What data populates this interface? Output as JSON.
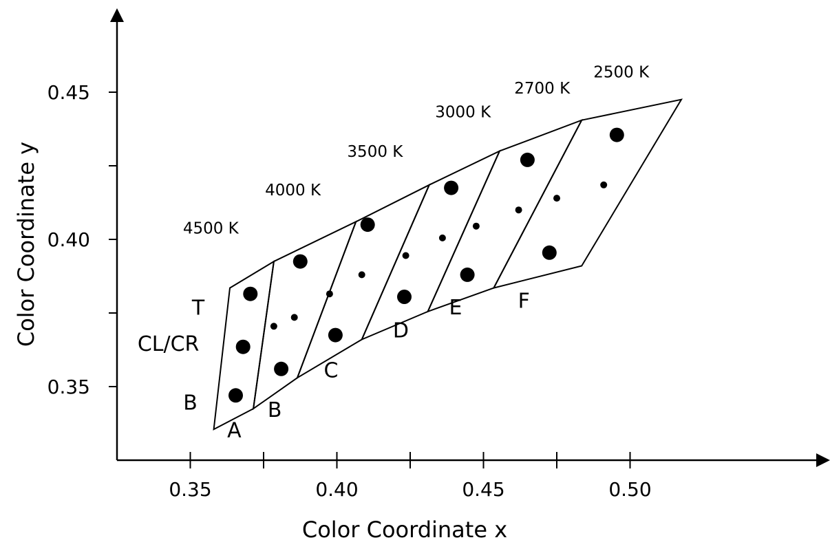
{
  "chart_data": {
    "type": "scatter",
    "xlabel": "Color Coordinate x",
    "ylabel": "Color Coordinate y",
    "xlim": [
      0.325,
      0.555
    ],
    "ylim": [
      0.325,
      0.477
    ],
    "x_ticks": [
      0.35,
      0.375,
      0.4,
      0.425,
      0.45,
      0.475,
      0.5
    ],
    "x_tick_labels": [
      "0.35",
      "",
      "0.40",
      "",
      "0.45",
      "",
      "0.50"
    ],
    "y_ticks": [
      0.35,
      0.375,
      0.4,
      0.425,
      0.45
    ],
    "y_tick_labels": [
      "0.35",
      "",
      "0.40",
      "",
      "0.45"
    ],
    "cct_labels": [
      {
        "text": "4500 K",
        "x": 0.357,
        "y": 0.402
      },
      {
        "text": "4000 K",
        "x": 0.385,
        "y": 0.415
      },
      {
        "text": "3500 K",
        "x": 0.413,
        "y": 0.428
      },
      {
        "text": "3000 K",
        "x": 0.443,
        "y": 0.4415
      },
      {
        "text": "2700 K",
        "x": 0.47,
        "y": 0.4495
      },
      {
        "text": "2500 K",
        "x": 0.497,
        "y": 0.455
      }
    ],
    "bin_labels": [
      {
        "text": "T",
        "x": 0.3527,
        "y": 0.3744
      },
      {
        "text": "CL/CR",
        "x": 0.3425,
        "y": 0.3622
      },
      {
        "text": "B",
        "x": 0.35,
        "y": 0.3422
      },
      {
        "text": "B",
        "x": 0.3788,
        "y": 0.3397
      },
      {
        "text": "A",
        "x": 0.365,
        "y": 0.3328
      },
      {
        "text": "C",
        "x": 0.398,
        "y": 0.3532
      },
      {
        "text": "D",
        "x": 0.4218,
        "y": 0.3667
      },
      {
        "text": "E",
        "x": 0.4405,
        "y": 0.3745
      },
      {
        "text": "F",
        "x": 0.4638,
        "y": 0.3767
      }
    ],
    "bins": [
      {
        "name": "A/B",
        "polygon": [
          [
            0.358,
            0.3355
          ],
          [
            0.3635,
            0.3835
          ],
          [
            0.3785,
            0.3925
          ],
          [
            0.3715,
            0.3425
          ]
        ]
      },
      {
        "name": "C",
        "polygon": [
          [
            0.3715,
            0.3425
          ],
          [
            0.3785,
            0.3925
          ],
          [
            0.4065,
            0.406
          ],
          [
            0.3865,
            0.353
          ]
        ]
      },
      {
        "name": "D",
        "polygon": [
          [
            0.3865,
            0.353
          ],
          [
            0.4065,
            0.406
          ],
          [
            0.4315,
            0.4185
          ],
          [
            0.4085,
            0.366
          ]
        ]
      },
      {
        "name": "E",
        "polygon": [
          [
            0.4085,
            0.366
          ],
          [
            0.4315,
            0.4185
          ],
          [
            0.4555,
            0.43
          ],
          [
            0.431,
            0.3755
          ]
        ]
      },
      {
        "name": "F",
        "polygon": [
          [
            0.431,
            0.3755
          ],
          [
            0.4555,
            0.43
          ],
          [
            0.4835,
            0.4405
          ],
          [
            0.4535,
            0.3835
          ]
        ]
      },
      {
        "name": "2500 K",
        "polygon": [
          [
            0.4535,
            0.3835
          ],
          [
            0.4835,
            0.4405
          ],
          [
            0.5175,
            0.4475
          ],
          [
            0.4835,
            0.391
          ]
        ]
      }
    ],
    "series": [
      {
        "marker": "large",
        "points": [
          [
            0.3655,
            0.347
          ],
          [
            0.368,
            0.3635
          ],
          [
            0.3705,
            0.3815
          ],
          [
            0.381,
            0.356
          ],
          [
            0.3875,
            0.3925
          ],
          [
            0.3995,
            0.3675
          ],
          [
            0.4105,
            0.405
          ],
          [
            0.423,
            0.3805
          ],
          [
            0.439,
            0.4175
          ],
          [
            0.4445,
            0.388
          ],
          [
            0.465,
            0.427
          ],
          [
            0.4725,
            0.3955
          ],
          [
            0.4955,
            0.4355
          ]
        ]
      },
      {
        "marker": "small",
        "points": [
          [
            0.3785,
            0.3705
          ],
          [
            0.3855,
            0.3735
          ],
          [
            0.3975,
            0.3815
          ],
          [
            0.4085,
            0.388
          ],
          [
            0.4235,
            0.3945
          ],
          [
            0.436,
            0.4005
          ],
          [
            0.4475,
            0.4045
          ],
          [
            0.462,
            0.41
          ],
          [
            0.475,
            0.414
          ],
          [
            0.491,
            0.4185
          ]
        ]
      }
    ]
  }
}
